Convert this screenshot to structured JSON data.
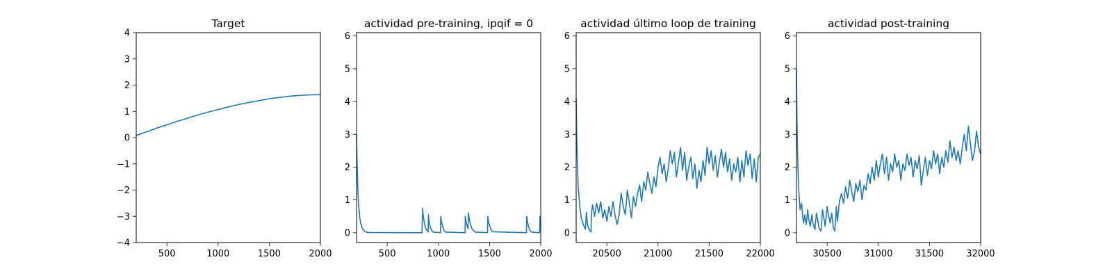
{
  "colors": {
    "series": "#1f77b4",
    "axes": "#000000",
    "background": "#ffffff"
  },
  "chart_data": [
    {
      "type": "line",
      "title": "Target",
      "xlabel": "",
      "ylabel": "",
      "xlim": [
        200,
        2000
      ],
      "ylim": [
        -4,
        4
      ],
      "xticks": [
        500,
        1000,
        1500,
        2000
      ],
      "yticks": [
        -4,
        -3,
        -2,
        -1,
        0,
        1,
        2,
        3,
        4
      ],
      "ytick_labels": [
        "−4",
        "−3",
        "−2",
        "−1",
        "0",
        "1",
        "2",
        "3",
        "4"
      ],
      "grid": false,
      "series": [
        {
          "x": [
            200,
            300,
            400,
            500,
            600,
            700,
            800,
            900,
            1000,
            1100,
            1200,
            1300,
            1400,
            1500,
            1600,
            1700,
            1800,
            1900,
            2000
          ],
          "values": [
            0.08,
            0.22,
            0.36,
            0.49,
            0.62,
            0.74,
            0.86,
            0.97,
            1.07,
            1.17,
            1.26,
            1.34,
            1.41,
            1.48,
            1.53,
            1.58,
            1.61,
            1.63,
            1.64
          ]
        }
      ]
    },
    {
      "type": "line",
      "title": "actividad pre-training, ipqif = 0",
      "xlabel": "",
      "ylabel": "",
      "xlim": [
        200,
        2000
      ],
      "ylim": [
        -0.3,
        6.1
      ],
      "xticks": [
        500,
        1000,
        1500,
        2000
      ],
      "yticks": [
        0,
        1,
        2,
        3,
        4,
        5,
        6
      ],
      "ytick_labels": [
        "0",
        "1",
        "2",
        "3",
        "4",
        "5",
        "6"
      ],
      "grid": false,
      "series": [
        {
          "x": [
            200,
            205,
            210,
            215,
            220,
            230,
            240,
            250,
            265,
            280,
            300,
            330,
            840,
            845,
            850,
            860,
            870,
            885,
            900,
            902,
            905,
            912,
            920,
            935,
            950,
            1020,
            1023,
            1030,
            1040,
            1055,
            1070,
            1260,
            1263,
            1270,
            1280,
            1290,
            1293,
            1300,
            1310,
            1325,
            1340,
            1360,
            1480,
            1483,
            1490,
            1500,
            1515,
            1530,
            1860,
            1863,
            1870,
            1880,
            1895,
            1910,
            1990,
            1993,
            2000
          ],
          "values": [
            3.0,
            2.2,
            1.6,
            1.15,
            0.85,
            0.5,
            0.3,
            0.18,
            0.09,
            0.04,
            0.015,
            0.005,
            0.0,
            0.75,
            0.55,
            0.35,
            0.2,
            0.08,
            0.03,
            0.55,
            0.45,
            0.3,
            0.18,
            0.06,
            0.02,
            0.0,
            0.5,
            0.35,
            0.2,
            0.07,
            0.02,
            0.0,
            0.5,
            0.35,
            0.22,
            0.12,
            0.6,
            0.45,
            0.3,
            0.15,
            0.07,
            0.02,
            0.0,
            0.5,
            0.35,
            0.22,
            0.09,
            0.03,
            0.0,
            0.5,
            0.35,
            0.2,
            0.07,
            0.02,
            0.0,
            0.5,
            0.3
          ]
        }
      ]
    },
    {
      "type": "line",
      "title": "actividad último loop de training",
      "xlabel": "",
      "ylabel": "",
      "xlim": [
        20200,
        22000
      ],
      "ylim": [
        -0.3,
        6.1
      ],
      "xticks": [
        20500,
        21000,
        21500,
        22000
      ],
      "yticks": [
        0,
        1,
        2,
        3,
        4,
        5,
        6
      ],
      "ytick_labels": [
        "0",
        "1",
        "2",
        "3",
        "4",
        "5",
        "6"
      ],
      "grid": false,
      "series": [
        {
          "x": [
            20200,
            20205,
            20210,
            20220,
            20235,
            20250,
            20270,
            20290,
            20300,
            20305,
            20315,
            20330,
            20345,
            20350,
            20360,
            20380,
            20400,
            20420,
            20440,
            20460,
            20480,
            20500,
            20520,
            20540,
            20560,
            20580,
            20600,
            20620,
            20640,
            20660,
            20680,
            20700,
            20720,
            20740,
            20760,
            20780,
            20800,
            20820,
            20840,
            20860,
            20880,
            20900,
            20920,
            20940,
            20960,
            20980,
            21000,
            21020,
            21040,
            21060,
            21080,
            21100,
            21120,
            21140,
            21160,
            21180,
            21200,
            21220,
            21240,
            21260,
            21280,
            21300,
            21320,
            21340,
            21360,
            21380,
            21400,
            21420,
            21440,
            21460,
            21480,
            21500,
            21520,
            21540,
            21560,
            21580,
            21600,
            21620,
            21640,
            21660,
            21680,
            21700,
            21720,
            21740,
            21760,
            21780,
            21800,
            21820,
            21840,
            21860,
            21880,
            21900,
            21920,
            21940,
            21960,
            21980,
            22000
          ],
          "values": [
            4.1,
            3.0,
            2.3,
            1.4,
            0.8,
            0.45,
            0.25,
            0.1,
            0.62,
            0.4,
            0.2,
            0.08,
            0.02,
            0.6,
            0.85,
            0.5,
            0.9,
            0.6,
            0.95,
            0.45,
            0.7,
            0.35,
            0.8,
            0.5,
            0.95,
            0.55,
            0.25,
            0.55,
            1.2,
            0.8,
            0.55,
            1.3,
            0.9,
            0.45,
            1.1,
            0.8,
            1.2,
            1.45,
            0.95,
            1.55,
            1.3,
            1.85,
            1.5,
            1.2,
            1.7,
            1.4,
            2.0,
            2.3,
            1.8,
            2.1,
            1.55,
            1.95,
            2.5,
            2.1,
            2.45,
            1.7,
            2.15,
            2.6,
            1.9,
            2.45,
            1.6,
            2.0,
            2.3,
            1.65,
            2.1,
            1.35,
            1.9,
            1.55,
            2.2,
            1.75,
            2.6,
            2.1,
            2.5,
            1.9,
            2.35,
            1.7,
            2.15,
            2.55,
            2.0,
            2.45,
            1.85,
            2.25,
            1.6,
            2.1,
            1.85,
            2.3,
            1.55,
            2.2,
            1.7,
            2.5,
            2.05,
            2.4,
            1.65,
            2.25,
            1.55,
            2.3,
            2.4
          ]
        }
      ]
    },
    {
      "type": "line",
      "title": "actividad post-training",
      "xlabel": "",
      "ylabel": "",
      "xlim": [
        30200,
        32000
      ],
      "ylim": [
        -0.3,
        6.1
      ],
      "xticks": [
        30500,
        31000,
        31500,
        32000
      ],
      "yticks": [
        0,
        1,
        2,
        3,
        4,
        5,
        6
      ],
      "ytick_labels": [
        "0",
        "1",
        "2",
        "3",
        "4",
        "5",
        "6"
      ],
      "grid": false,
      "series": [
        {
          "x": [
            30200,
            30205,
            30210,
            30220,
            30235,
            30250,
            30260,
            30270,
            30280,
            30295,
            30310,
            30320,
            30335,
            30350,
            30360,
            30380,
            30395,
            30410,
            30420,
            30440,
            30455,
            30470,
            30480,
            30500,
            30515,
            30530,
            30545,
            30560,
            30575,
            30590,
            30600,
            30620,
            30640,
            30660,
            30680,
            30700,
            30720,
            30740,
            30760,
            30780,
            30800,
            30820,
            30840,
            30860,
            30880,
            30900,
            30920,
            30940,
            30960,
            30980,
            31000,
            31020,
            31040,
            31060,
            31080,
            31100,
            31120,
            31140,
            31160,
            31180,
            31200,
            31220,
            31240,
            31260,
            31280,
            31300,
            31320,
            31340,
            31360,
            31380,
            31400,
            31420,
            31440,
            31460,
            31480,
            31500,
            31520,
            31540,
            31560,
            31580,
            31600,
            31620,
            31640,
            31660,
            31680,
            31700,
            31720,
            31740,
            31760,
            31780,
            31800,
            31820,
            31840,
            31860,
            31880,
            31900,
            31920,
            31940,
            31960,
            31980,
            32000
          ],
          "values": [
            5.0,
            3.5,
            2.5,
            1.4,
            0.7,
            0.9,
            0.5,
            0.3,
            0.55,
            0.25,
            0.7,
            0.4,
            0.2,
            0.55,
            0.3,
            0.1,
            0.6,
            0.35,
            0.15,
            0.05,
            0.7,
            0.4,
            0.2,
            0.8,
            0.5,
            0.3,
            0.6,
            0.15,
            0.05,
            0.8,
            0.35,
            0.95,
            1.2,
            0.9,
            1.4,
            1.05,
            1.6,
            1.25,
            0.95,
            1.5,
            1.25,
            1.6,
            1.0,
            1.45,
            1.3,
            1.8,
            1.5,
            2.0,
            1.6,
            2.2,
            1.7,
            2.1,
            2.4,
            1.8,
            2.3,
            1.6,
            2.1,
            1.85,
            2.4,
            2.0,
            2.2,
            1.6,
            2.1,
            1.9,
            2.4,
            2.05,
            2.3,
            1.7,
            2.2,
            1.95,
            2.35,
            1.45,
            1.9,
            2.3,
            1.75,
            2.2,
            1.95,
            2.5,
            2.1,
            2.4,
            1.8,
            2.3,
            2.0,
            2.5,
            2.15,
            2.8,
            2.3,
            2.6,
            2.2,
            2.5,
            2.1,
            2.6,
            3.0,
            2.5,
            3.25,
            2.7,
            2.2,
            2.5,
            3.1,
            2.6,
            2.4
          ]
        }
      ]
    }
  ]
}
